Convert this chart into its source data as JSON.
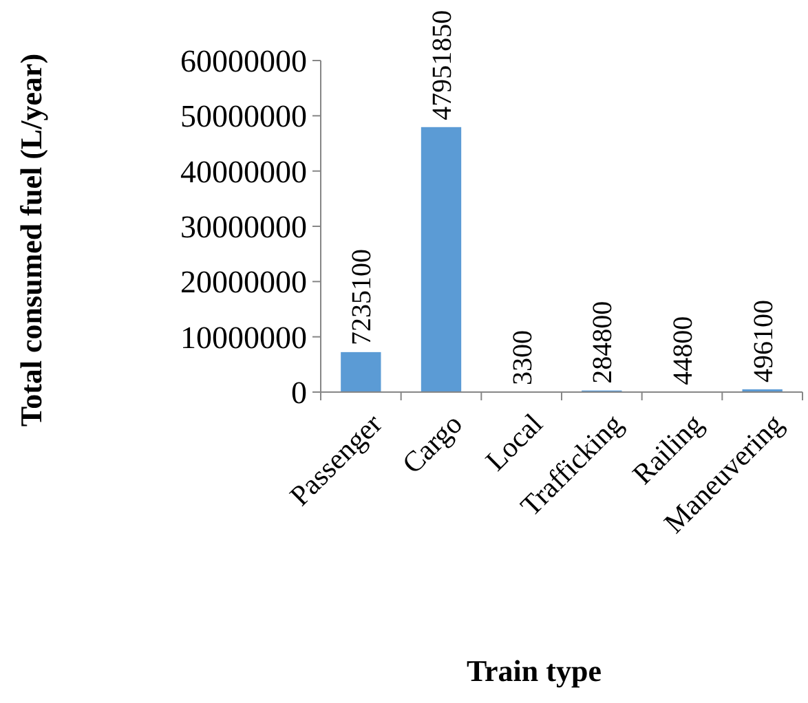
{
  "chart_data": {
    "type": "bar",
    "xlabel": "Train type",
    "ylabel": "Total consumed fuel (L/year)",
    "categories": [
      "Passenger",
      "Cargo",
      "Local",
      "Trafficking",
      "Railing",
      "Maneuvering"
    ],
    "values": [
      7235100,
      47951850,
      3300,
      284800,
      44800,
      496100
    ],
    "color": "#5b9bd5",
    "ylim": [
      0,
      60000000
    ],
    "yticks": [
      0,
      10000000,
      20000000,
      30000000,
      40000000,
      50000000,
      60000000
    ],
    "data_labels": true,
    "grid": false
  }
}
